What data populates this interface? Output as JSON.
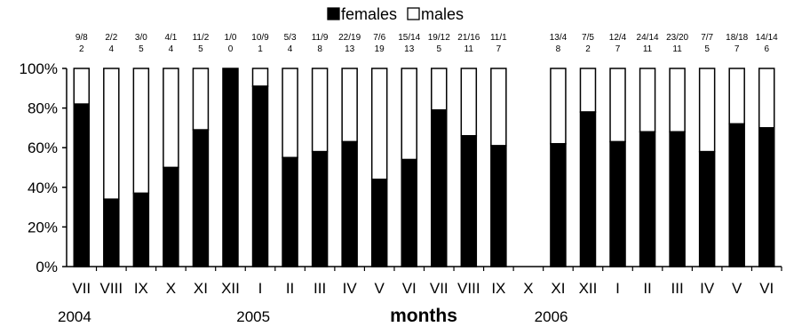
{
  "chart_data": {
    "type": "bar",
    "stacked": true,
    "percent": true,
    "title": "",
    "xlabel": "months",
    "ylabel": "",
    "ylim": [
      0,
      100
    ],
    "yticks": [
      "0%",
      "20%",
      "40%",
      "60%",
      "80%",
      "100%"
    ],
    "legend": {
      "placement": "top-center",
      "entries": [
        {
          "name": "females",
          "color": "#000000"
        },
        {
          "name": "males",
          "color": "#ffffff"
        }
      ]
    },
    "years": [
      {
        "label": "2004",
        "start_index": 0
      },
      {
        "label": "2005",
        "start_index": 6
      },
      {
        "label": "2006",
        "start_index": 16
      }
    ],
    "categories": [
      "VII",
      "VIII",
      "IX",
      "X",
      "XI",
      "XII",
      "I",
      "II",
      "III",
      "IV",
      "V",
      "VI",
      "VII",
      "VIII",
      "IX",
      "X",
      "XI",
      "XII",
      "I",
      "II",
      "III",
      "IV",
      "V",
      "VI"
    ],
    "series": [
      {
        "name": "females",
        "values": [
          82,
          34,
          37,
          50,
          69,
          100,
          91,
          55,
          58,
          63,
          44,
          54,
          79,
          66,
          61,
          null,
          62,
          78,
          63,
          68,
          68,
          58,
          72,
          70
        ]
      },
      {
        "name": "males",
        "values": [
          18,
          66,
          63,
          50,
          31,
          0,
          9,
          45,
          42,
          37,
          56,
          46,
          21,
          34,
          39,
          null,
          38,
          22,
          37,
          32,
          32,
          42,
          28,
          30
        ]
      }
    ],
    "annotations": [
      {
        "line1": "9/8",
        "line2": "2"
      },
      {
        "line1": "2/2",
        "line2": "4"
      },
      {
        "line1": "3/0",
        "line2": "5"
      },
      {
        "line1": "4/1",
        "line2": "4"
      },
      {
        "line1": "11/2",
        "line2": "5"
      },
      {
        "line1": "1/0",
        "line2": "0"
      },
      {
        "line1": "10/9",
        "line2": "1"
      },
      {
        "line1": "5/3",
        "line2": "4"
      },
      {
        "line1": "11/9",
        "line2": "8"
      },
      {
        "line1": "22/19",
        "line2": "13"
      },
      {
        "line1": "7/6",
        "line2": "19"
      },
      {
        "line1": "15/14",
        "line2": "13"
      },
      {
        "line1": "19/12",
        "line2": "5"
      },
      {
        "line1": "21/16",
        "line2": "11"
      },
      {
        "line1": "11/1",
        "line2": "7"
      },
      {
        "line1": "",
        "line2": ""
      },
      {
        "line1": "13/4",
        "line2": "8"
      },
      {
        "line1": "7/5",
        "line2": "2"
      },
      {
        "line1": "12/4",
        "line2": "7"
      },
      {
        "line1": "24/14",
        "line2": "11"
      },
      {
        "line1": "23/20",
        "line2": "11"
      },
      {
        "line1": "7/7",
        "line2": "5"
      },
      {
        "line1": "18/18",
        "line2": "7"
      },
      {
        "line1": "14/14",
        "line2": "6"
      }
    ]
  }
}
